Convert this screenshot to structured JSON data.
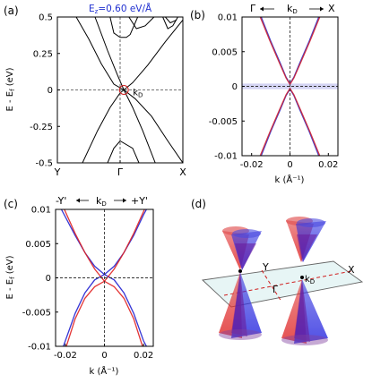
{
  "panel_labels": {
    "a": "(a)",
    "b": "(b)",
    "c": "(c)",
    "d": "(d)"
  },
  "chart_data": [
    {
      "panel": "a",
      "type": "line",
      "annotation_field": "E",
      "annotation_field_sub": "z",
      "annotation_field_rest": "=0.60 eV/Å",
      "annotation_kd": "k",
      "annotation_kd_sub": "D",
      "ylabel_main": "E - E",
      "ylabel_sub": "f",
      "ylabel_unit": " (eV)",
      "xticks": [
        "Y",
        "Γ",
        "X"
      ],
      "ylim": [
        -0.5,
        0.5
      ],
      "yticks": [
        "0.5",
        "0.25",
        "0",
        "-0.25",
        "-0.5"
      ],
      "dashed_lines": {
        "y": 0,
        "x": "Γ"
      },
      "series": [
        {
          "points": [
            [
              0.15,
              0.5
            ],
            [
              0.25,
              0.35
            ],
            [
              0.35,
              0.18
            ],
            [
              0.45,
              0.04
            ],
            [
              0.53,
              0.0
            ]
          ]
        },
        {
          "points": [
            [
              0.53,
              0.0
            ],
            [
              0.62,
              -0.06
            ],
            [
              0.75,
              -0.18
            ],
            [
              0.88,
              -0.35
            ],
            [
              1.0,
              -0.5
            ]
          ]
        },
        {
          "points": [
            [
              0.3,
              0.5
            ],
            [
              0.4,
              0.27
            ],
            [
              0.48,
              0.1
            ],
            [
              0.53,
              0.0
            ]
          ]
        },
        {
          "points": [
            [
              0.53,
              0.0
            ],
            [
              0.6,
              -0.12
            ],
            [
              0.68,
              -0.28
            ],
            [
              0.78,
              -0.5
            ]
          ]
        },
        {
          "points": [
            [
              0.2,
              -0.5
            ],
            [
              0.32,
              -0.28
            ],
            [
              0.42,
              -0.12
            ],
            [
              0.5,
              -0.02
            ],
            [
              0.53,
              0.0
            ]
          ]
        },
        {
          "points": [
            [
              0.53,
              0.0
            ],
            [
              0.6,
              0.05
            ],
            [
              0.72,
              0.17
            ],
            [
              0.86,
              0.33
            ],
            [
              1.0,
              0.48
            ]
          ]
        },
        {
          "points": [
            [
              0.4,
              -0.5
            ],
            [
              0.45,
              -0.4
            ],
            [
              0.5,
              -0.35
            ],
            [
              0.6,
              -0.4
            ],
            [
              0.65,
              -0.5
            ]
          ]
        },
        {
          "points": [
            [
              0.42,
              0.5
            ],
            [
              0.45,
              0.39
            ],
            [
              0.5,
              0.36
            ],
            [
              0.55,
              0.36
            ],
            [
              0.58,
              0.38
            ],
            [
              0.64,
              0.5
            ]
          ]
        },
        {
          "points": [
            [
              0.57,
              0.5
            ],
            [
              0.63,
              0.42
            ],
            [
              0.7,
              0.44
            ],
            [
              0.77,
              0.5
            ]
          ]
        },
        {
          "points": [
            [
              0.84,
              0.5
            ],
            [
              0.88,
              0.42
            ],
            [
              0.92,
              0.44
            ],
            [
              0.96,
              0.5
            ]
          ]
        },
        {
          "points": [
            [
              0.86,
              0.5
            ],
            [
              0.9,
              0.46
            ],
            [
              0.95,
              0.48
            ]
          ]
        }
      ]
    },
    {
      "panel": "b",
      "type": "line",
      "top_left": "Γ",
      "top_mid": "k",
      "top_mid_sub": "D",
      "top_right": "X",
      "xlabel": "k (Å⁻¹)",
      "xlim": [
        -0.025,
        0.025
      ],
      "xticks": [
        "-0.02",
        "0",
        "0.02"
      ],
      "ylim": [
        -0.01,
        0.01
      ],
      "yticks": [
        "0.01",
        "0.005",
        "0",
        "-0.005",
        "-0.01"
      ],
      "dashed_lines": {
        "y": 0,
        "x": 0
      },
      "band_highlight": [
        -0.0004,
        0.0004
      ],
      "series": [
        {
          "color": "#3030c8",
          "points": [
            [
              -0.015,
              0.01
            ],
            [
              -0.01,
              0.0065
            ],
            [
              -0.005,
              0.0033
            ],
            [
              -0.002,
              0.0013
            ],
            [
              0,
              0.0004
            ],
            [
              0.002,
              0.0013
            ],
            [
              0.005,
              0.0033
            ],
            [
              0.01,
              0.0065
            ],
            [
              0.015,
              0.01
            ]
          ]
        },
        {
          "color": "#d02030",
          "points": [
            [
              -0.0155,
              0.01
            ],
            [
              -0.0105,
              0.0066
            ],
            [
              -0.0055,
              0.0034
            ],
            [
              -0.002,
              0.0012
            ],
            [
              0,
              0.0003
            ],
            [
              0.002,
              0.0012
            ],
            [
              0.0055,
              0.0034
            ],
            [
              0.0105,
              0.0066
            ],
            [
              0.0155,
              0.01
            ]
          ]
        },
        {
          "color": "#3030c8",
          "points": [
            [
              -0.015,
              -0.01
            ],
            [
              -0.01,
              -0.0065
            ],
            [
              -0.005,
              -0.0033
            ],
            [
              -0.002,
              -0.0013
            ],
            [
              0,
              -0.0004
            ],
            [
              0.002,
              -0.0013
            ],
            [
              0.005,
              -0.0033
            ],
            [
              0.01,
              -0.0065
            ],
            [
              0.015,
              -0.01
            ]
          ]
        },
        {
          "color": "#d02030",
          "points": [
            [
              -0.0155,
              -0.01
            ],
            [
              -0.0105,
              -0.0066
            ],
            [
              -0.0055,
              -0.0034
            ],
            [
              -0.002,
              -0.0012
            ],
            [
              0,
              -0.0003
            ],
            [
              0.002,
              -0.0012
            ],
            [
              0.0055,
              -0.0034
            ],
            [
              0.0105,
              -0.0066
            ],
            [
              0.0155,
              -0.01
            ]
          ]
        }
      ]
    },
    {
      "panel": "c",
      "type": "line",
      "top_left": "-Y'",
      "top_mid": "k",
      "top_mid_sub": "D",
      "top_right": "+Y'",
      "ylabel_main": "E - E",
      "ylabel_sub": "f",
      "ylabel_unit": " (eV)",
      "xlabel": "k (Å⁻¹)",
      "xlim": [
        -0.025,
        0.025
      ],
      "xticks": [
        "-0.02",
        "0",
        "0.02"
      ],
      "ylim": [
        -0.01,
        0.01
      ],
      "yticks": [
        "0.01",
        "0.005",
        "0",
        "-0.005",
        "-0.01"
      ],
      "dashed_lines": {
        "y": 0,
        "x": 0
      },
      "series": [
        {
          "color": "#2020d0",
          "points": [
            [
              -0.022,
              0.01
            ],
            [
              -0.015,
              0.0062
            ],
            [
              -0.01,
              0.0037
            ],
            [
              -0.005,
              0.0017
            ],
            [
              0,
              0.0005
            ],
            [
              0.005,
              -0.0003
            ],
            [
              0.01,
              -0.0022
            ],
            [
              0.015,
              -0.0052
            ],
            [
              0.02,
              -0.0092
            ],
            [
              0.0215,
              -0.01
            ]
          ]
        },
        {
          "color": "#2020d0",
          "points": [
            [
              -0.021,
              -0.01
            ],
            [
              -0.015,
              -0.0052
            ],
            [
              -0.01,
              -0.0022
            ],
            [
              -0.005,
              -0.0003
            ],
            [
              0,
              0.0005
            ],
            [
              0.005,
              0.0017
            ],
            [
              0.01,
              0.0037
            ],
            [
              0.015,
              0.0062
            ],
            [
              0.02,
              0.0092
            ],
            [
              0.0215,
              0.01
            ]
          ]
        },
        {
          "color": "#e02020",
          "points": [
            [
              -0.0205,
              0.01
            ],
            [
              -0.015,
              0.0065
            ],
            [
              -0.01,
              0.0037
            ],
            [
              -0.005,
              0.0013
            ],
            [
              0,
              -0.0005
            ],
            [
              0.005,
              -0.0013
            ],
            [
              0.01,
              -0.003
            ],
            [
              0.015,
              -0.006
            ],
            [
              0.0195,
              -0.01
            ]
          ]
        },
        {
          "color": "#e02020",
          "points": [
            [
              -0.0195,
              -0.01
            ],
            [
              -0.015,
              -0.006
            ],
            [
              -0.01,
              -0.003
            ],
            [
              -0.005,
              -0.0013
            ],
            [
              0,
              -0.0005
            ],
            [
              0.005,
              0.0013
            ],
            [
              0.01,
              0.0037
            ],
            [
              0.015,
              0.0065
            ],
            [
              0.0205,
              0.01
            ]
          ]
        }
      ]
    }
  ],
  "diagram_d": {
    "label_Y": "Y",
    "label_X": "X",
    "label_gamma": "Γ",
    "label_kd": "k",
    "label_kd_sub": "D",
    "cone_colors": {
      "red": "#e03030",
      "blue": "#3030e0",
      "purple": "#6a1a9a"
    }
  }
}
